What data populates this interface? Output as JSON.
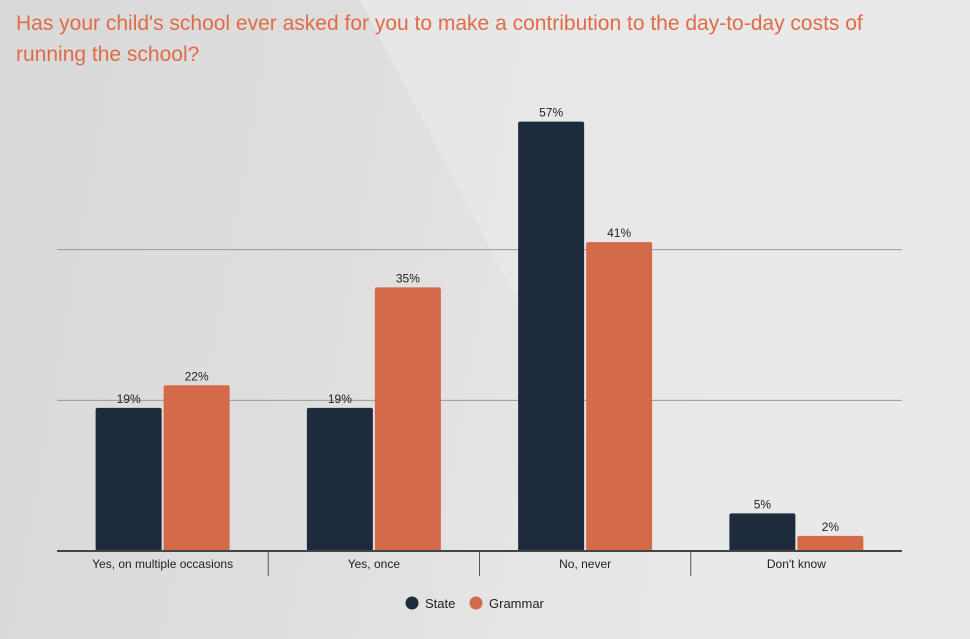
{
  "chart_data": {
    "type": "bar",
    "title": "Has your child's school ever asked for you to make a contribution to the day-to-day costs of running the school?",
    "categories": [
      "Yes, on multiple occasions",
      "Yes, once",
      "No, never",
      "Don't know"
    ],
    "series": [
      {
        "name": "State",
        "values": [
          19,
          19,
          57,
          5
        ],
        "labels": [
          "19%",
          "19%",
          "57%",
          "5%"
        ],
        "color": "#1e2b3c"
      },
      {
        "name": "Grammar",
        "values": [
          22,
          35,
          41,
          2
        ],
        "labels": [
          "22%",
          "35%",
          "41%",
          "2%"
        ],
        "color": "#d46a4a"
      }
    ],
    "ylim": [
      0,
      60
    ],
    "gridlines": [
      20,
      40
    ],
    "grid": true,
    "legend": "bottom-center",
    "xlabel": "",
    "ylabel": ""
  }
}
